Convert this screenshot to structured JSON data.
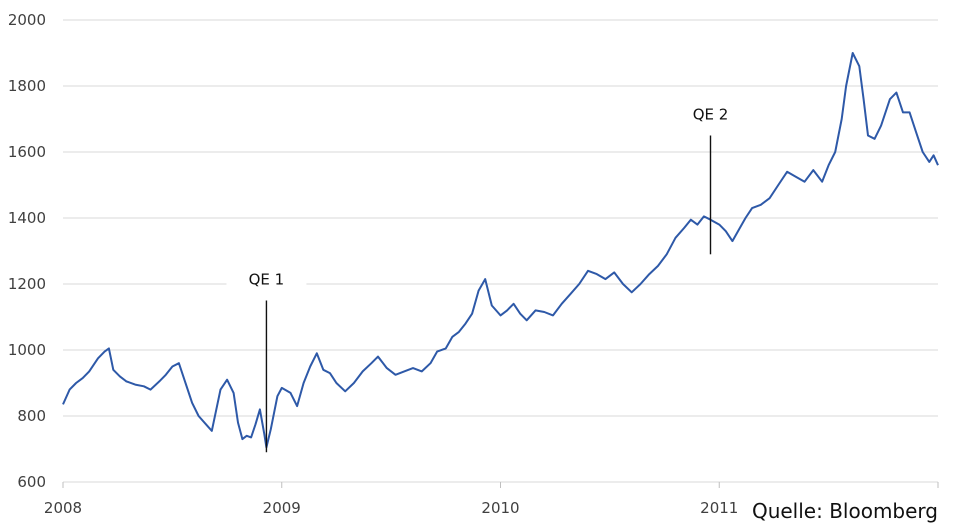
{
  "chart_data": {
    "type": "line",
    "title": "",
    "xlabel": "",
    "ylabel": "",
    "ylim": [
      600,
      2000
    ],
    "y_ticks": [
      "600",
      "800",
      "1000",
      "1200",
      "1400",
      "1600",
      "1800",
      "2000"
    ],
    "x_ticks": [
      "2008",
      "2009",
      "2010",
      "2011"
    ],
    "grid": "horizontal",
    "legend": "none",
    "source": "Quelle: Bloomberg",
    "line_color": "#2e59a8",
    "series": [
      {
        "points": [
          [
            2008.0,
            835
          ],
          [
            2008.03,
            880
          ],
          [
            2008.06,
            900
          ],
          [
            2008.09,
            915
          ],
          [
            2008.12,
            935
          ],
          [
            2008.16,
            975
          ],
          [
            2008.19,
            995
          ],
          [
            2008.21,
            1005
          ],
          [
            2008.23,
            940
          ],
          [
            2008.26,
            920
          ],
          [
            2008.29,
            905
          ],
          [
            2008.33,
            895
          ],
          [
            2008.37,
            890
          ],
          [
            2008.4,
            880
          ],
          [
            2008.44,
            905
          ],
          [
            2008.47,
            925
          ],
          [
            2008.5,
            950
          ],
          [
            2008.53,
            960
          ],
          [
            2008.56,
            900
          ],
          [
            2008.59,
            840
          ],
          [
            2008.62,
            800
          ],
          [
            2008.66,
            770
          ],
          [
            2008.68,
            755
          ],
          [
            2008.72,
            880
          ],
          [
            2008.75,
            910
          ],
          [
            2008.78,
            870
          ],
          [
            2008.8,
            780
          ],
          [
            2008.82,
            730
          ],
          [
            2008.84,
            740
          ],
          [
            2008.86,
            735
          ],
          [
            2008.88,
            775
          ],
          [
            2008.9,
            820
          ],
          [
            2008.92,
            745
          ],
          [
            2008.93,
            705
          ],
          [
            2008.95,
            760
          ],
          [
            2008.98,
            860
          ],
          [
            2009.0,
            885
          ],
          [
            2009.04,
            870
          ],
          [
            2009.07,
            830
          ],
          [
            2009.1,
            900
          ],
          [
            2009.13,
            950
          ],
          [
            2009.16,
            990
          ],
          [
            2009.19,
            940
          ],
          [
            2009.22,
            930
          ],
          [
            2009.25,
            900
          ],
          [
            2009.29,
            875
          ],
          [
            2009.33,
            900
          ],
          [
            2009.37,
            935
          ],
          [
            2009.41,
            960
          ],
          [
            2009.44,
            980
          ],
          [
            2009.48,
            945
          ],
          [
            2009.52,
            925
          ],
          [
            2009.56,
            935
          ],
          [
            2009.6,
            945
          ],
          [
            2009.64,
            935
          ],
          [
            2009.68,
            960
          ],
          [
            2009.71,
            995
          ],
          [
            2009.75,
            1005
          ],
          [
            2009.78,
            1040
          ],
          [
            2009.81,
            1055
          ],
          [
            2009.84,
            1080
          ],
          [
            2009.87,
            1110
          ],
          [
            2009.9,
            1180
          ],
          [
            2009.93,
            1215
          ],
          [
            2009.96,
            1135
          ],
          [
            2010.0,
            1105
          ],
          [
            2010.03,
            1120
          ],
          [
            2010.06,
            1140
          ],
          [
            2010.09,
            1110
          ],
          [
            2010.12,
            1090
          ],
          [
            2010.16,
            1120
          ],
          [
            2010.2,
            1115
          ],
          [
            2010.24,
            1105
          ],
          [
            2010.28,
            1140
          ],
          [
            2010.32,
            1170
          ],
          [
            2010.36,
            1200
          ],
          [
            2010.4,
            1240
          ],
          [
            2010.44,
            1230
          ],
          [
            2010.48,
            1215
          ],
          [
            2010.52,
            1235
          ],
          [
            2010.56,
            1200
          ],
          [
            2010.6,
            1175
          ],
          [
            2010.64,
            1200
          ],
          [
            2010.68,
            1230
          ],
          [
            2010.72,
            1255
          ],
          [
            2010.76,
            1290
          ],
          [
            2010.8,
            1340
          ],
          [
            2010.84,
            1370
          ],
          [
            2010.87,
            1395
          ],
          [
            2010.9,
            1380
          ],
          [
            2010.93,
            1405
          ],
          [
            2010.96,
            1395
          ],
          [
            2011.0,
            1380
          ],
          [
            2011.03,
            1360
          ],
          [
            2011.06,
            1330
          ],
          [
            2011.09,
            1365
          ],
          [
            2011.12,
            1400
          ],
          [
            2011.15,
            1430
          ],
          [
            2011.19,
            1440
          ],
          [
            2011.23,
            1460
          ],
          [
            2011.27,
            1500
          ],
          [
            2011.31,
            1540
          ],
          [
            2011.35,
            1525
          ],
          [
            2011.39,
            1510
          ],
          [
            2011.43,
            1545
          ],
          [
            2011.47,
            1510
          ],
          [
            2011.5,
            1560
          ],
          [
            2011.53,
            1600
          ],
          [
            2011.56,
            1700
          ],
          [
            2011.58,
            1800
          ],
          [
            2011.61,
            1900
          ],
          [
            2011.64,
            1860
          ],
          [
            2011.66,
            1760
          ],
          [
            2011.68,
            1650
          ],
          [
            2011.71,
            1640
          ],
          [
            2011.74,
            1680
          ],
          [
            2011.78,
            1760
          ],
          [
            2011.81,
            1780
          ],
          [
            2011.84,
            1720
          ],
          [
            2011.87,
            1720
          ],
          [
            2011.9,
            1660
          ],
          [
            2011.93,
            1600
          ],
          [
            2011.96,
            1570
          ],
          [
            2011.98,
            1590
          ],
          [
            2012.0,
            1560
          ]
        ]
      }
    ],
    "annotations": [
      {
        "label": "QE 1",
        "x": 2008.93,
        "y_top": 1150,
        "y_bottom": 690
      },
      {
        "label": "QE 2",
        "x": 2010.96,
        "y_top": 1650,
        "y_bottom": 1290
      }
    ]
  }
}
